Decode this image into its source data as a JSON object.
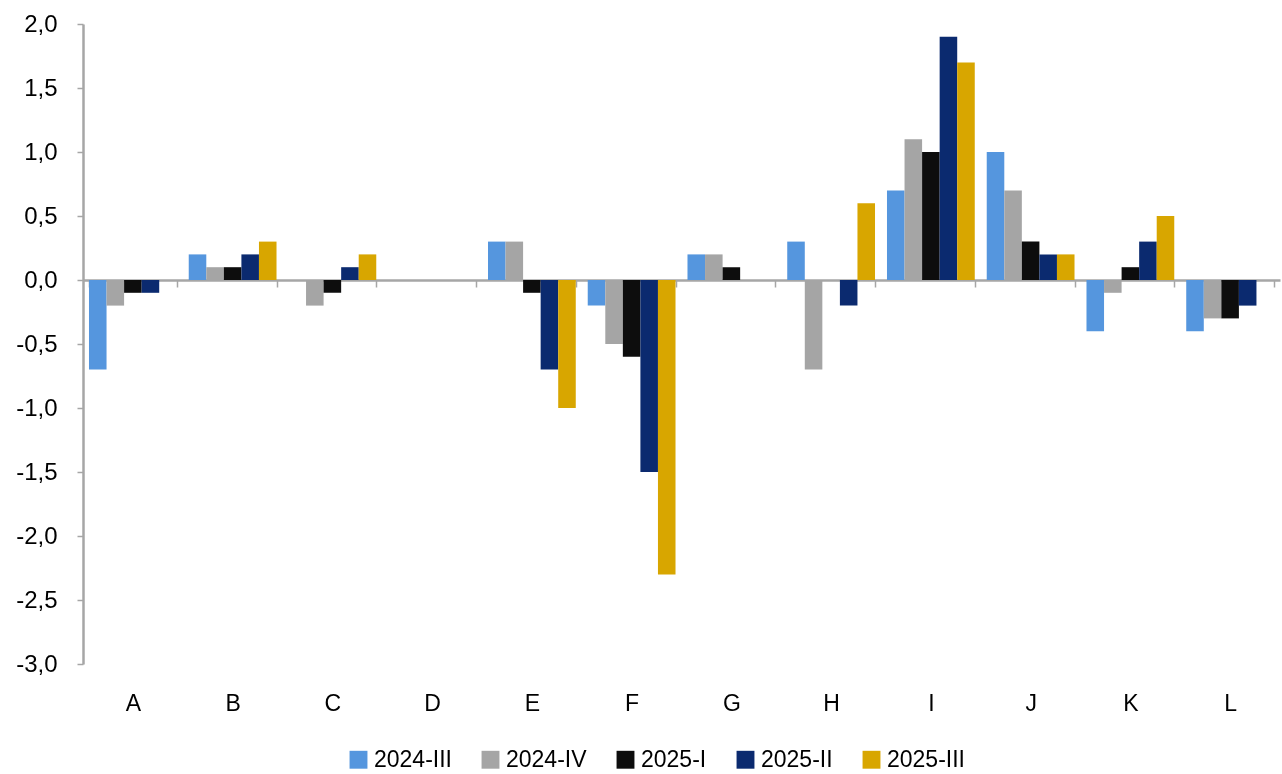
{
  "chart_data": {
    "type": "bar",
    "categories": [
      "A",
      "B",
      "C",
      "D",
      "E",
      "F",
      "G",
      "H",
      "I",
      "J",
      "K",
      "L"
    ],
    "series": [
      {
        "name": "2024-III",
        "color": "#5596de",
        "values": [
          -0.7,
          0.2,
          null,
          null,
          0.3,
          -0.2,
          0.2,
          0.3,
          0.7,
          1.0,
          -0.4,
          -0.4
        ]
      },
      {
        "name": "2024-IV",
        "color": "#a5a5a5",
        "values": [
          -0.2,
          0.1,
          -0.2,
          null,
          0.3,
          -0.5,
          0.2,
          -0.7,
          1.1,
          0.7,
          -0.1,
          -0.3
        ]
      },
      {
        "name": "2025-I",
        "color": "#0d0d0d",
        "values": [
          -0.1,
          0.1,
          -0.1,
          null,
          -0.1,
          -0.6,
          0.1,
          null,
          1.0,
          0.3,
          0.1,
          -0.3
        ]
      },
      {
        "name": "2025-II",
        "color": "#0b2a6f",
        "values": [
          -0.1,
          0.2,
          0.1,
          null,
          -0.7,
          -1.5,
          null,
          -0.2,
          1.9,
          0.2,
          0.3,
          -0.2
        ]
      },
      {
        "name": "2025-III",
        "color": "#d8a600",
        "values": [
          null,
          0.3,
          0.2,
          null,
          -1.0,
          -2.3,
          null,
          0.6,
          1.7,
          0.2,
          0.5,
          null
        ]
      }
    ],
    "ylim": [
      -3,
      2
    ],
    "yticks": [
      {
        "value": -3,
        "label": "-3,0"
      },
      {
        "value": -2.5,
        "label": "-2,5"
      },
      {
        "value": -2,
        "label": "-2,0"
      },
      {
        "value": -1.5,
        "label": "-1,5"
      },
      {
        "value": -1,
        "label": "-1,0"
      },
      {
        "value": -0.5,
        "label": "-0,5"
      },
      {
        "value": 0,
        "label": "0,0"
      },
      {
        "value": 0.5,
        "label": "0,5"
      },
      {
        "value": 1,
        "label": "1,0"
      },
      {
        "value": 1.5,
        "label": "1,5"
      },
      {
        "value": 2,
        "label": "2,0"
      }
    ],
    "legend": "bottom"
  }
}
